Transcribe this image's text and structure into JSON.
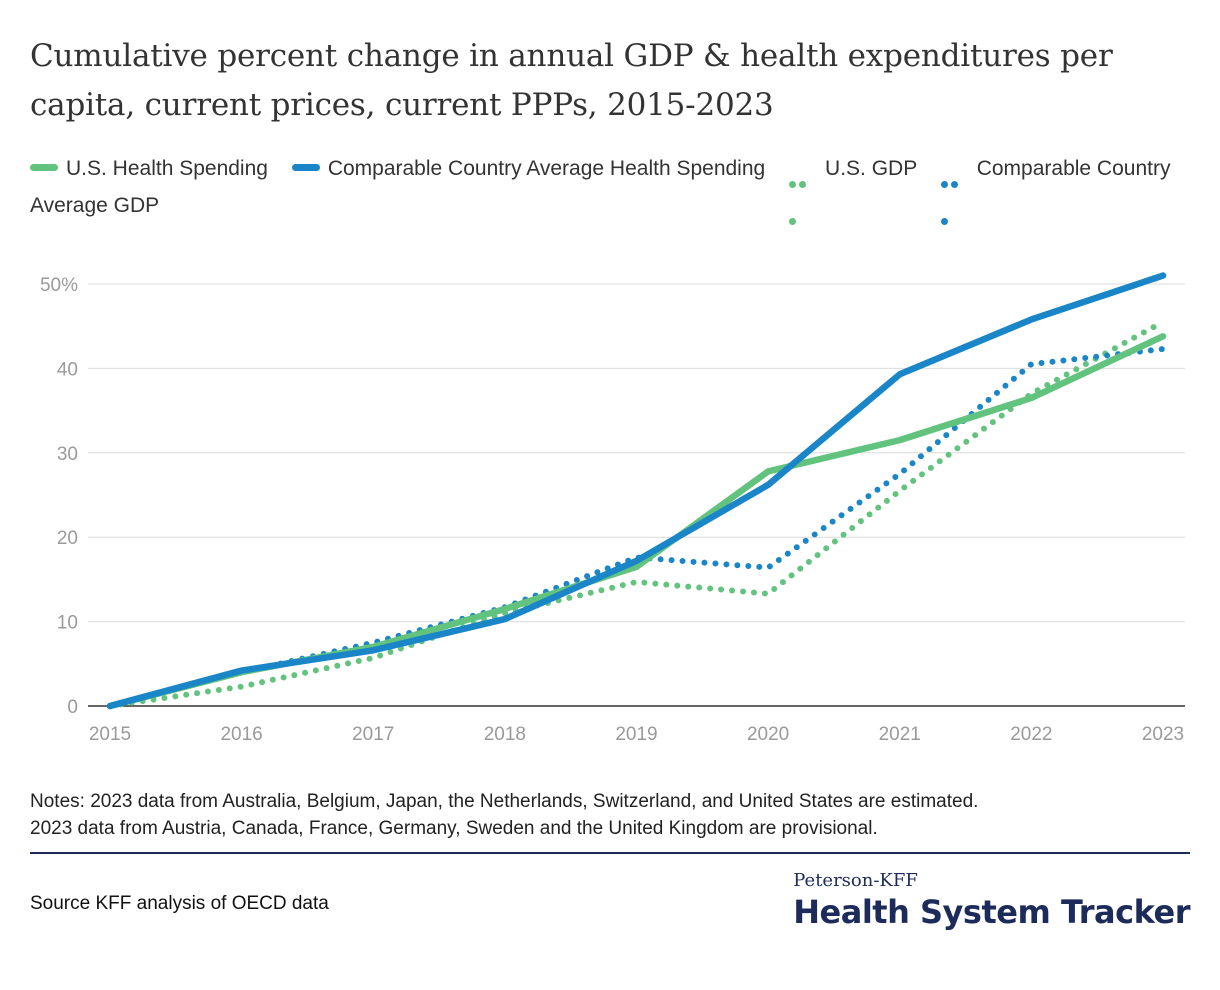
{
  "colors": {
    "us": "#62c37f",
    "comparable": "#1a86c8",
    "grid": "#dcdcdc",
    "axis_text": "#9a9a9a",
    "brand": "#1c2b5a"
  },
  "legend": [
    {
      "label": "U.S. Health Spending",
      "style": "solid",
      "color": "#62c37f"
    },
    {
      "label": "Comparable Country Average Health Spending",
      "style": "solid",
      "color": "#1a86c8"
    },
    {
      "label": "U.S. GDP",
      "style": "dotted",
      "color": "#62c37f"
    },
    {
      "label": "Comparable Country Average GDP",
      "style": "dotted",
      "color": "#1a86c8"
    }
  ],
  "chart_data": {
    "type": "line",
    "title": "Cumulative percent change in annual GDP & health expenditures per capita, current prices, current PPPs, 2015-2023",
    "x": [
      "2015",
      "2016",
      "2017",
      "2018",
      "2019",
      "2020",
      "2021",
      "2022",
      "2023"
    ],
    "ylim": [
      0,
      50
    ],
    "yticks": [
      0,
      10,
      20,
      30,
      40,
      50
    ],
    "ytick_labels": [
      "0",
      "10",
      "20",
      "30",
      "40",
      "50%"
    ],
    "xlabel": "",
    "ylabel": "",
    "grid": true,
    "series": [
      {
        "name": "U.S. Health Spending",
        "style": "solid",
        "color": "#62c37f",
        "values": [
          0,
          4.0,
          7.0,
          11.5,
          16.5,
          27.8,
          31.5,
          36.5,
          43.8
        ]
      },
      {
        "name": "Comparable Country Average Health Spending",
        "style": "solid",
        "color": "#1a86c8",
        "values": [
          0,
          4.2,
          6.6,
          10.3,
          17.2,
          26.2,
          39.3,
          45.8,
          51.0
        ]
      },
      {
        "name": "U.S. GDP",
        "style": "dotted",
        "color": "#62c37f",
        "values": [
          0,
          2.3,
          5.7,
          11.0,
          14.7,
          13.3,
          25.5,
          37.0,
          45.5
        ]
      },
      {
        "name": "Comparable Country Average GDP",
        "style": "dotted",
        "color": "#1a86c8",
        "values": [
          0,
          4.0,
          7.5,
          11.7,
          17.6,
          16.4,
          27.5,
          40.5,
          42.3
        ]
      }
    ]
  },
  "notes": {
    "line1": "Notes: 2023 data from Australia, Belgium, Japan, the Netherlands, Switzerland, and United States are estimated.",
    "line2": "2023 data from Austria, Canada, France, Germany, Sweden and the United Kingdom are provisional."
  },
  "source": "Source KFF analysis of OECD data",
  "brand": {
    "top": "Peterson-KFF",
    "main": "Health System Tracker"
  }
}
